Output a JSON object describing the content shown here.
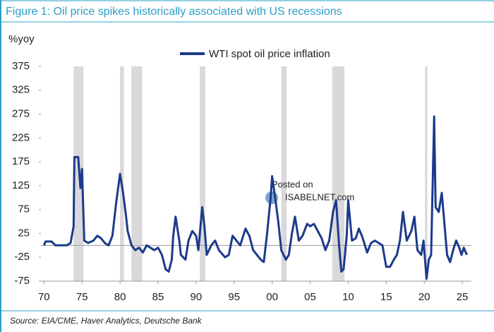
{
  "chart_data": {
    "type": "line",
    "title": "Figure 1: Oil price spikes historically associated with US recessions",
    "y_label": "%yoy",
    "source": "Source: EIA/CME, Haver Analytics, Deutsche Bank",
    "watermark": [
      "Posted on",
      "ISABELNET.com"
    ],
    "xlim": [
      1969.6,
      2026.2
    ],
    "ylim": [
      -75,
      375
    ],
    "xticks": [
      {
        "value": 1970,
        "label": "70"
      },
      {
        "value": 1975,
        "label": "75"
      },
      {
        "value": 1980,
        "label": "80"
      },
      {
        "value": 1985,
        "label": "85"
      },
      {
        "value": 1990,
        "label": "90"
      },
      {
        "value": 1995,
        "label": "95"
      },
      {
        "value": 2000,
        "label": "00"
      },
      {
        "value": 2005,
        "label": "05"
      },
      {
        "value": 2010,
        "label": "10"
      },
      {
        "value": 2015,
        "label": "15"
      },
      {
        "value": 2020,
        "label": "20"
      },
      {
        "value": 2025,
        "label": "25"
      }
    ],
    "yticks": [
      375,
      325,
      275,
      225,
      175,
      125,
      75,
      25,
      -25,
      -75
    ],
    "recessions": [
      [
        1973.9,
        1975.2
      ],
      [
        1980.0,
        1980.5
      ],
      [
        1981.5,
        1982.9
      ],
      [
        1990.5,
        1991.2
      ],
      [
        2001.2,
        2001.9
      ],
      [
        2007.9,
        2009.5
      ],
      [
        2020.1,
        2020.4
      ]
    ],
    "recession_color": "#d9d9d9",
    "legend": "top",
    "series": [
      {
        "name": "WTI spot oil price inflation",
        "color": "#1c3a8c",
        "x": [
          1970,
          1970.2,
          1971,
          1971.5,
          1972,
          1973,
          1973.5,
          1973.9,
          1974.0,
          1974.5,
          1974.8,
          1975.0,
          1975.3,
          1975.8,
          1976.5,
          1977,
          1977.5,
          1978,
          1978.5,
          1979,
          1979.5,
          1980.0,
          1980.4,
          1980.8,
          1981,
          1981.5,
          1982,
          1982.5,
          1983,
          1983.5,
          1984,
          1984.5,
          1985,
          1985.5,
          1986,
          1986.4,
          1986.8,
          1987,
          1987.3,
          1987.8,
          1988,
          1988.6,
          1989,
          1989.5,
          1990,
          1990.3,
          1990.8,
          1991.1,
          1991.4,
          1992,
          1992.5,
          1993,
          1993.8,
          1994.3,
          1994.8,
          1995.3,
          1995.8,
          1996.5,
          1997,
          1997.5,
          1998,
          1998.5,
          1998.9,
          1999.3,
          1999.8,
          2000.0,
          2000.4,
          2000.8,
          2001.2,
          2001.8,
          2002.2,
          2002.6,
          2003,
          2003.5,
          2004,
          2004.6,
          2005,
          2005.5,
          2006,
          2006.5,
          2007,
          2007.5,
          2008.0,
          2008.4,
          2008.8,
          2009.1,
          2009.4,
          2009.8,
          2010.0,
          2010.5,
          2011,
          2011.4,
          2011.8,
          2012,
          2012.5,
          2013,
          2013.5,
          2014,
          2014.5,
          2015,
          2015.5,
          2016.0,
          2016.4,
          2016.8,
          2017.2,
          2017.7,
          2018.3,
          2018.7,
          2019.1,
          2019.6,
          2019.9,
          2020.3,
          2020.6,
          2020.9,
          2021.3,
          2021.5,
          2021.9,
          2022.3,
          2022.6,
          2023,
          2023.4,
          2023.8,
          2024.2,
          2024.6,
          2024.9,
          2025.2,
          2025.6
        ],
        "values": [
          0,
          8,
          8,
          0,
          0,
          0,
          5,
          40,
          185,
          185,
          120,
          160,
          10,
          5,
          10,
          20,
          15,
          5,
          0,
          20,
          90,
          150,
          110,
          60,
          30,
          0,
          -10,
          -5,
          -15,
          0,
          -5,
          -10,
          -5,
          -20,
          -50,
          -55,
          -30,
          20,
          60,
          10,
          -20,
          -30,
          10,
          30,
          20,
          -10,
          80,
          40,
          -20,
          0,
          10,
          -10,
          -25,
          -20,
          20,
          10,
          0,
          35,
          20,
          -10,
          -20,
          -30,
          -35,
          20,
          100,
          145,
          100,
          50,
          -10,
          -30,
          -20,
          25,
          60,
          10,
          20,
          45,
          40,
          45,
          30,
          15,
          -10,
          10,
          70,
          95,
          0,
          -55,
          -50,
          20,
          95,
          10,
          15,
          35,
          20,
          10,
          -15,
          5,
          10,
          5,
          0,
          -45,
          -45,
          -30,
          -20,
          10,
          70,
          10,
          30,
          60,
          -10,
          -20,
          10,
          -70,
          -30,
          -20,
          270,
          80,
          70,
          110,
          55,
          -20,
          -35,
          -10,
          10,
          -5,
          -20,
          -5,
          -20
        ]
      }
    ]
  }
}
